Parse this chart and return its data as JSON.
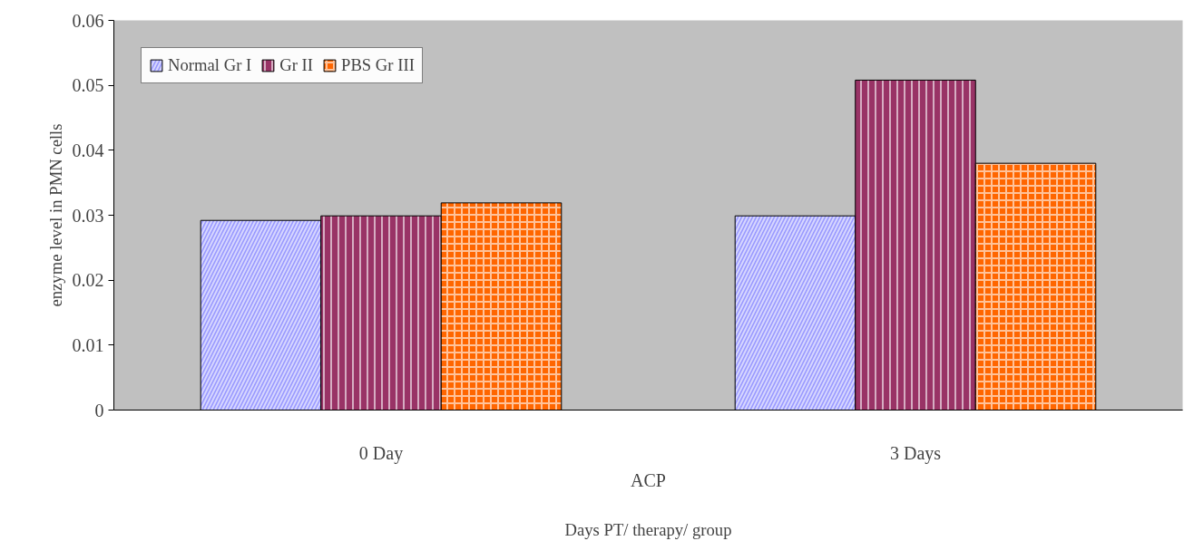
{
  "chart_data": {
    "type": "bar",
    "xlabel": "Days PT/ therapy/ group",
    "ylabel": "enzyme level in PMN cells",
    "categories": [
      "0 Day",
      "3 Days"
    ],
    "series": [
      {
        "name": "Normal Gr I",
        "color": "#9999ff",
        "values": [
          0.0292,
          0.0299
        ]
      },
      {
        "name": "Gr II",
        "color": "#993366",
        "values": [
          0.0299,
          0.0508
        ]
      },
      {
        "name": "PBS Gr III",
        "color": "#ff6600",
        "values": [
          0.0319,
          0.038
        ]
      }
    ],
    "annotations": [
      "ACP"
    ],
    "ylim": [
      0,
      0.06
    ],
    "yticks": [
      0,
      0.01,
      0.02,
      0.03,
      0.04,
      0.05,
      0.06
    ],
    "grid": false,
    "legend": "top left"
  }
}
